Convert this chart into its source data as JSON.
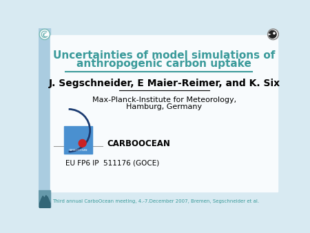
{
  "title_line1": "Uncertainties of model simulations of",
  "title_line2": "anthropogenic carbon uptake",
  "title_color": "#3a9a9a",
  "author_line": "J. Segschneider, E Maier-Reimer, and K. Six",
  "institute_line1": "Max-Planck-Institute for Meteorology,",
  "institute_line2": "Hamburg, Germany",
  "carboocean_label": "CARBOOCEAN",
  "eu_line": "EU FP6 IP  511176 (GOCE)",
  "footer_line": "Third annual CarboOcean meeting, 4.-7.December 2007, Bremen, Segschneider et al.",
  "footer_color": "#3a9a9a",
  "bg_color_main": "#d8eaf2",
  "bg_color_left_strip": "#aacce0",
  "bg_color_white": "#f8fbfd",
  "separator_color": "#3a9a9a",
  "carbo_box_color": "#4a90d0",
  "carbo_circle_color": "#1a3a70",
  "carbo_dot_color": "#cc2222",
  "line_color": "#999999",
  "tl_logo_color": "#7ababa",
  "tr_logo_color": "#888888",
  "bottom_box_color": "#6699aa"
}
